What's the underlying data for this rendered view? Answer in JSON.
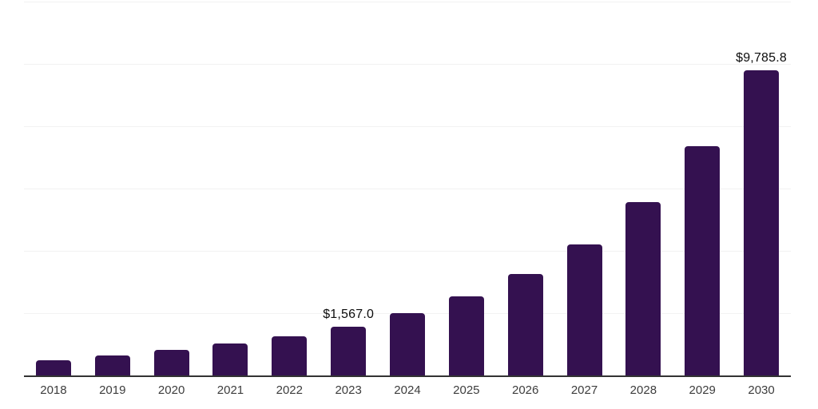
{
  "chart": {
    "bar_color": "#341150",
    "grid_color": "#f2f2f2",
    "axis_color": "#333333",
    "x_label_color": "#3d3d3d",
    "value_label_color": "#0d0d0d",
    "background_color": "#ffffff"
  },
  "chart_data": {
    "type": "bar",
    "title": "",
    "xlabel": "",
    "ylabel": "",
    "categories": [
      "2018",
      "2019",
      "2020",
      "2021",
      "2022",
      "2023",
      "2024",
      "2025",
      "2026",
      "2027",
      "2028",
      "2029",
      "2030"
    ],
    "values": [
      500,
      650,
      820,
      1025,
      1250,
      1567.0,
      2000,
      2550,
      3270,
      4210,
      5570,
      7350,
      9785.8
    ],
    "value_labels": [
      "",
      "",
      "",
      "",
      "",
      "$1,567.0",
      "",
      "",
      "",
      "",
      "",
      "",
      "$9,785.8"
    ],
    "ylim": [
      0,
      12000
    ],
    "grid_step": 2000,
    "grid": true,
    "legend_position": "none"
  }
}
